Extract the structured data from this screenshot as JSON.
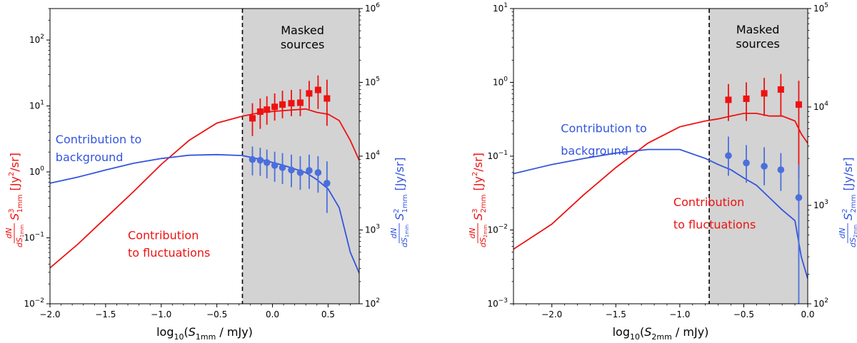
{
  "chart_data": [
    {
      "type": "line",
      "xlabel": "log10(S1mm / mJy)",
      "xlabel_parts": [
        "log",
        "10",
        "(",
        "S",
        "1mm",
        " / mJy)"
      ],
      "ylabel_left": "dN/dS1mm S³1mm [Jy²/sr]",
      "ylabel_left_parts": [
        "dN",
        "dS",
        "1mm",
        "S",
        "3",
        "1mm",
        "[Jy",
        "2",
        "/sr]"
      ],
      "ylabel_right": "dN/dS1mm S²1mm [Jy/sr]",
      "ylabel_right_parts": [
        "dN",
        "dS",
        "1mm",
        "S",
        "2",
        "1mm",
        "[Jy/sr]"
      ],
      "xlim": [
        -2.0,
        0.78
      ],
      "ylim_left": [
        0.01,
        300
      ],
      "ylim_right": [
        100,
        1000000
      ],
      "yscale": "log",
      "xticks": [
        "−2.0",
        "−1.5",
        "−1.0",
        "−0.5",
        "0.0",
        "0.5"
      ],
      "xtick_values": [
        -2.0,
        -1.5,
        -1.0,
        -0.5,
        0.0,
        0.5
      ],
      "yticks_left": [
        0.01,
        0.1,
        1,
        10,
        100
      ],
      "yticks_left_labels": [
        [
          "10",
          "−2"
        ],
        [
          "10",
          "−1"
        ],
        [
          "10",
          "0"
        ],
        [
          "10",
          "1"
        ],
        [
          "10",
          "2"
        ]
      ],
      "yticks_right": [
        100,
        1000,
        10000,
        100000,
        1000000
      ],
      "yticks_right_labels": [
        [
          "10",
          "2"
        ],
        [
          "10",
          "3"
        ],
        [
          "10",
          "4"
        ],
        [
          "10",
          "5"
        ],
        [
          "10",
          "6"
        ]
      ],
      "mask_start": -0.27,
      "mask_label": [
        "Masked",
        "sources"
      ],
      "annotations": {
        "background": [
          "Contribution to",
          "background"
        ],
        "fluctuations": [
          "Contribution",
          "to fluctuations"
        ]
      },
      "colors": {
        "red": "#ee1111",
        "blue": "#3355dd",
        "blue_points": "#4a6fdd",
        "mask": "#d3d3d3"
      },
      "series": [
        {
          "role": "fluctuations",
          "axis": "left",
          "x": [
            -2.0,
            -1.75,
            -1.5,
            -1.25,
            -1.0,
            -0.75,
            -0.5,
            -0.27,
            -0.1,
            0.1,
            0.3,
            0.4,
            0.5,
            0.6,
            0.7,
            0.78
          ],
          "y": [
            0.035,
            0.08,
            0.2,
            0.5,
            1.3,
            3.0,
            5.5,
            7.0,
            8.0,
            8.5,
            9.0,
            8.0,
            7.5,
            6.0,
            3.0,
            1.5
          ]
        },
        {
          "role": "background",
          "axis": "right",
          "x": [
            -2.0,
            -1.75,
            -1.5,
            -1.25,
            -1.0,
            -0.75,
            -0.5,
            -0.27,
            -0.1,
            0.1,
            0.3,
            0.4,
            0.5,
            0.6,
            0.7,
            0.78
          ],
          "y": [
            4300,
            5200,
            6500,
            8000,
            9300,
            10300,
            10500,
            10200,
            9000,
            7500,
            6000,
            4800,
            3600,
            2000,
            500,
            260
          ]
        }
      ],
      "points_red": {
        "axis": "left",
        "x": [
          -0.18,
          -0.11,
          -0.05,
          0.02,
          0.09,
          0.17,
          0.25,
          0.33,
          0.41,
          0.49
        ],
        "y": [
          6.5,
          8.2,
          8.8,
          9.7,
          10.5,
          11.0,
          11.2,
          15.5,
          17.5,
          13.0
        ],
        "ylo": [
          3.5,
          4.5,
          5.2,
          6.0,
          6.5,
          7.0,
          7.0,
          9.0,
          9.0,
          5.0
        ],
        "yhi": [
          11.0,
          13.0,
          14.0,
          15.5,
          17.0,
          17.5,
          18.0,
          24.0,
          29.0,
          25.0
        ]
      },
      "points_blue": {
        "axis": "right",
        "x": [
          -0.18,
          -0.11,
          -0.05,
          0.02,
          0.09,
          0.17,
          0.25,
          0.33,
          0.41,
          0.49
        ],
        "y": [
          9000,
          8800,
          8200,
          7500,
          7000,
          6500,
          6000,
          6400,
          6000,
          4300
        ],
        "ylo": [
          5500,
          5400,
          5000,
          4500,
          4200,
          3800,
          3500,
          3600,
          3200,
          1700
        ],
        "yhi": [
          13500,
          13000,
          12300,
          11500,
          11000,
          10500,
          10000,
          10500,
          10000,
          8500
        ]
      }
    },
    {
      "type": "line",
      "xlabel": "log10(S2mm / mJy)",
      "xlabel_parts": [
        "log",
        "10",
        "(",
        "S",
        "2mm",
        " / mJy)"
      ],
      "ylabel_left": "dN/dS2mm S³2mm [Jy²/sr]",
      "ylabel_left_parts": [
        "dN",
        "dS",
        "2mm",
        "S",
        "3",
        "2mm",
        "[Jy",
        "2",
        "/sr]"
      ],
      "ylabel_right": "dN/dS2mm S²2mm [Jy/sr]",
      "ylabel_right_parts": [
        "dN",
        "dS",
        "2mm",
        "S",
        "2",
        "2mm",
        "[Jy/sr]"
      ],
      "xlim": [
        -2.3,
        0.0
      ],
      "ylim_left": [
        0.001,
        10
      ],
      "ylim_right": [
        100,
        100000
      ],
      "yscale": "log",
      "xticks": [
        "−2.0",
        "−1.5",
        "−1.0",
        "−0.5",
        "0.0"
      ],
      "xtick_values": [
        -2.0,
        -1.5,
        -1.0,
        -0.5,
        0.0
      ],
      "yticks_left": [
        0.001,
        0.01,
        0.1,
        1,
        10
      ],
      "yticks_left_labels": [
        [
          "10",
          "−3"
        ],
        [
          "10",
          "−2"
        ],
        [
          "10",
          "−1"
        ],
        [
          "10",
          "0"
        ],
        [
          "10",
          "1"
        ]
      ],
      "yticks_right": [
        100,
        1000,
        10000,
        100000
      ],
      "yticks_right_labels": [
        [
          "10",
          "2"
        ],
        [
          "10",
          "3"
        ],
        [
          "10",
          "4"
        ],
        [
          "10",
          "5"
        ]
      ],
      "mask_start": -0.77,
      "mask_label": [
        "Masked",
        "sources"
      ],
      "annotations": {
        "background": [
          "Contribution to",
          "background"
        ],
        "fluctuations": [
          "Contribution",
          "to fluctuations"
        ]
      },
      "colors": {
        "red": "#ee1111",
        "blue": "#3355dd",
        "blue_points": "#4a6fdd",
        "mask": "#d3d3d3"
      },
      "series": [
        {
          "role": "fluctuations",
          "axis": "left",
          "x": [
            -2.3,
            -2.0,
            -1.75,
            -1.5,
            -1.25,
            -1.0,
            -0.8,
            -0.7,
            -0.6,
            -0.5,
            -0.4,
            -0.3,
            -0.2,
            -0.1,
            -0.05,
            0.0
          ],
          "y": [
            0.0055,
            0.012,
            0.03,
            0.07,
            0.15,
            0.25,
            0.3,
            0.32,
            0.35,
            0.38,
            0.38,
            0.35,
            0.35,
            0.3,
            0.2,
            0.15
          ]
        },
        {
          "role": "background",
          "axis": "right",
          "x": [
            -2.3,
            -2.0,
            -1.75,
            -1.5,
            -1.25,
            -1.0,
            -0.8,
            -0.7,
            -0.6,
            -0.5,
            -0.4,
            -0.3,
            -0.2,
            -0.1,
            -0.05,
            0.0
          ],
          "y": [
            2100,
            2600,
            3000,
            3400,
            3700,
            3700,
            3000,
            2600,
            2300,
            1900,
            1600,
            1200,
            900,
            700,
            300,
            180
          ]
        }
      ],
      "points_red": {
        "axis": "left",
        "x": [
          -0.62,
          -0.48,
          -0.34,
          -0.21,
          -0.07
        ],
        "y": [
          0.58,
          0.6,
          0.71,
          0.8,
          0.5
        ],
        "ylo": [
          0.3,
          0.3,
          0.35,
          0.35,
          0.05
        ],
        "yhi": [
          0.95,
          1.0,
          1.15,
          1.3,
          1.05
        ]
      },
      "points_blue": {
        "axis": "right",
        "x": [
          -0.62,
          -0.48,
          -0.34,
          -0.21,
          -0.07
        ],
        "y": [
          3200,
          2700,
          2500,
          2300,
          1200
        ],
        "ylo": [
          2000,
          1700,
          1600,
          1400,
          100
        ],
        "yhi": [
          5000,
          4100,
          3900,
          3400,
          2600
        ]
      }
    }
  ]
}
